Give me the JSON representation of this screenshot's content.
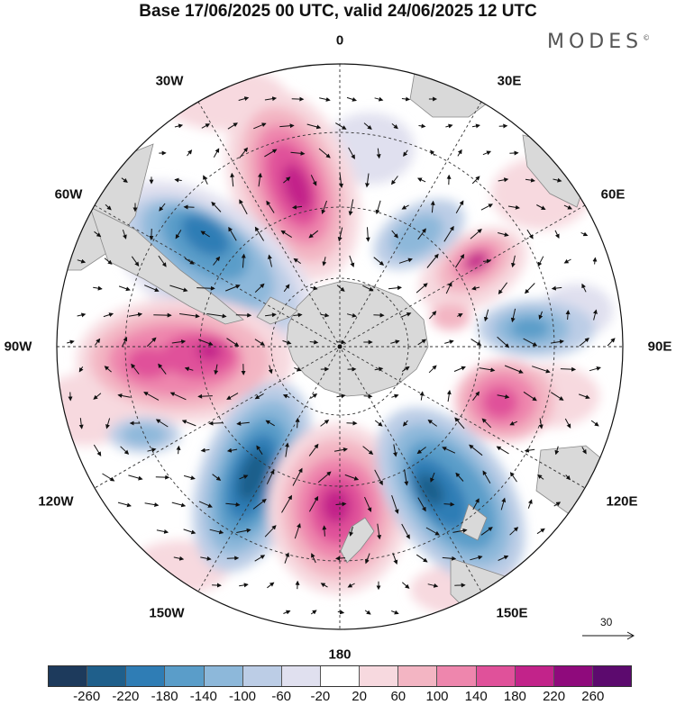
{
  "title": "Base 17/06/2025 00 UTC, valid 24/06/2025 12 UTC",
  "brand": "MODES",
  "brand_mark": "©",
  "longitude_labels": {
    "lon_0": "0",
    "lon_30e": "30E",
    "lon_60e": "60E",
    "lon_90e": "90E",
    "lon_120e": "120E",
    "lon_150e": "150E",
    "lon_180": "180",
    "lon_150w": "150W",
    "lon_120w": "120W",
    "lon_90w": "90W",
    "lon_60w": "60W",
    "lon_30w": "30W"
  },
  "reference_vector": "30",
  "colorbar": {
    "ticks": [
      "-260",
      "-220",
      "-180",
      "-140",
      "-100",
      "-60",
      "-20",
      "20",
      "60",
      "100",
      "140",
      "180",
      "220",
      "260"
    ],
    "colors": [
      "#1d3a5c",
      "#1f5f8b",
      "#2f7db5",
      "#5a9dc9",
      "#8db8da",
      "#bccde6",
      "#e0e0ef",
      "#ffffff",
      "#f7d9df",
      "#f3b5c3",
      "#ee86ad",
      "#e0519a",
      "#c2238a",
      "#8f0a7c",
      "#5c0a6e"
    ]
  },
  "colors": {
    "land": "#d9d9d9",
    "land_edge": "#888888",
    "grid": "#333333"
  }
}
